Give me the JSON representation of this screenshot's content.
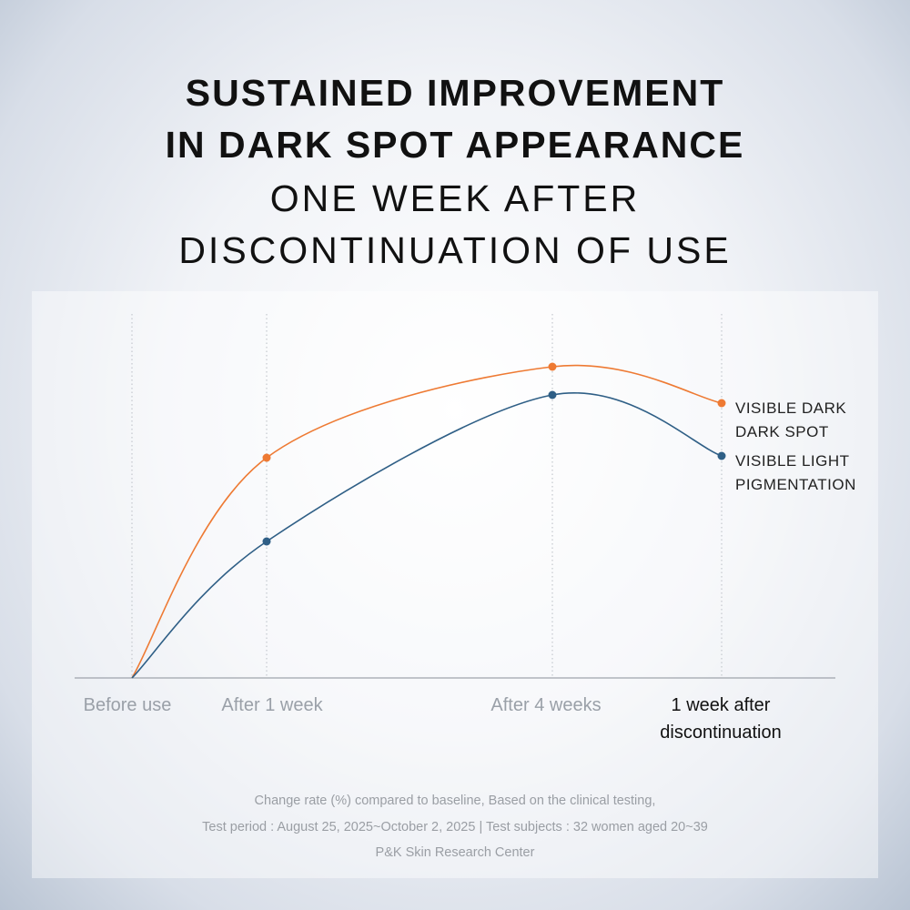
{
  "chart_data": {
    "type": "line",
    "title": "SUSTAINED IMPROVEMENT\nIN DARK SPOT APPEARANCE",
    "subtitle": "ONE WEEK AFTER\nDISCONTINUATION OF USE",
    "categories": [
      "Before use",
      "After 1 week",
      "After 4 weeks",
      "1 week after\ndiscontinuation"
    ],
    "series": [
      {
        "name": "VISIBLE DARK\nDARK SPOT",
        "color": "#ee7a33",
        "values": [
          0,
          242,
          342,
          302
        ]
      },
      {
        "name": "VISIBLE LIGHT\nPIGMENTATION",
        "color": "#2f5f86",
        "values": [
          0,
          150,
          311,
          244
        ]
      }
    ],
    "ylim": [
      0,
      400
    ],
    "notes": [
      "Change rate (%) compared to baseline, Based on the clinical testing,",
      "Test period : August 25, 2025~October 2, 2025 | Test subjects : 32 women aged 20~39",
      "P&K Skin Research Center"
    ]
  }
}
